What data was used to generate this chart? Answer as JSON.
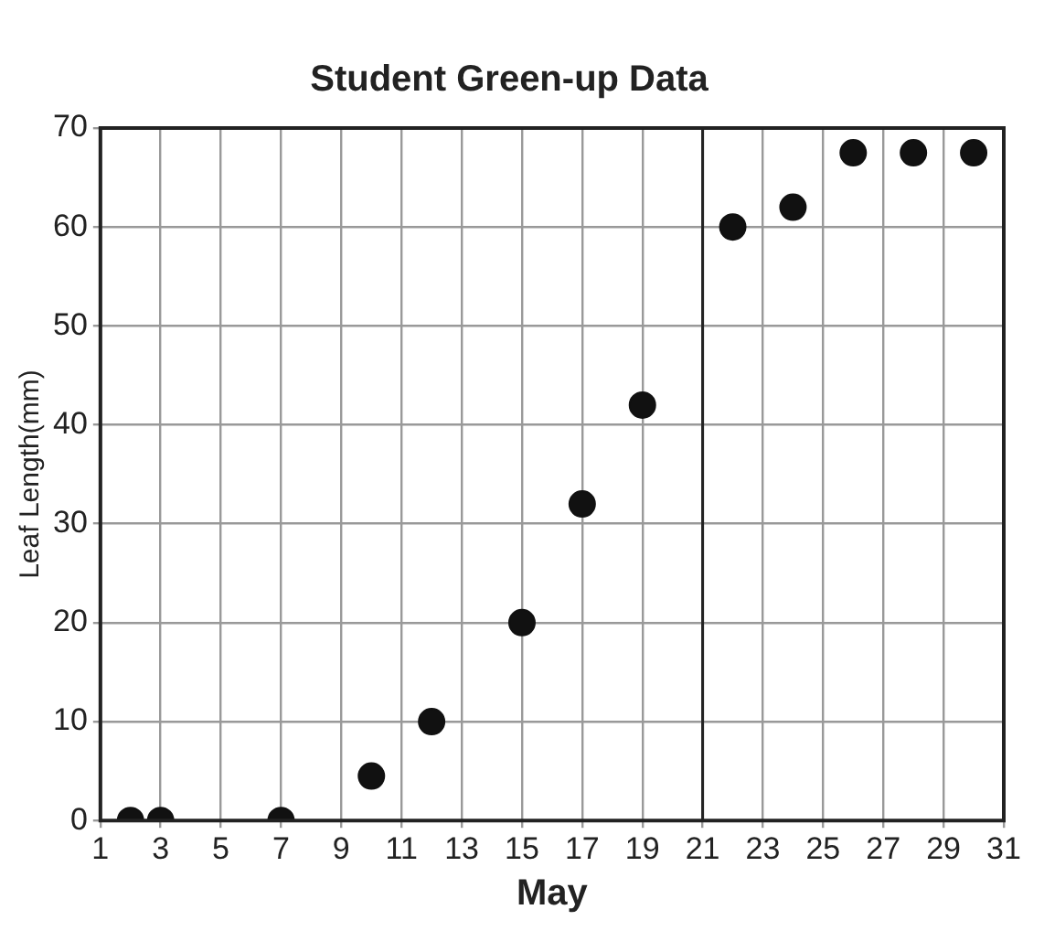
{
  "chart_data": {
    "type": "scatter",
    "title": "Student Green-up Data",
    "xlabel": "May",
    "ylabel": "Leaf Length(mm)",
    "x": [
      2,
      3,
      7,
      10,
      12,
      15,
      17,
      19,
      22,
      24,
      26,
      28,
      30
    ],
    "values": [
      0,
      0,
      0,
      4.5,
      10,
      20,
      32,
      42,
      60,
      62,
      67.5,
      67.5,
      67.5
    ],
    "color": "#111111",
    "marker": "circle",
    "xlim": [
      1,
      31
    ],
    "xticks": [
      1,
      3,
      5,
      7,
      9,
      11,
      13,
      15,
      17,
      19,
      21,
      23,
      25,
      27,
      29,
      31
    ],
    "ylim": [
      0,
      70
    ],
    "yticks": [
      0,
      10,
      20,
      30,
      40,
      50,
      60,
      70
    ],
    "grid": true,
    "legend": false,
    "ref_lines": [
      {
        "axis": "x",
        "value": 21,
        "color": "#222222"
      }
    ]
  }
}
